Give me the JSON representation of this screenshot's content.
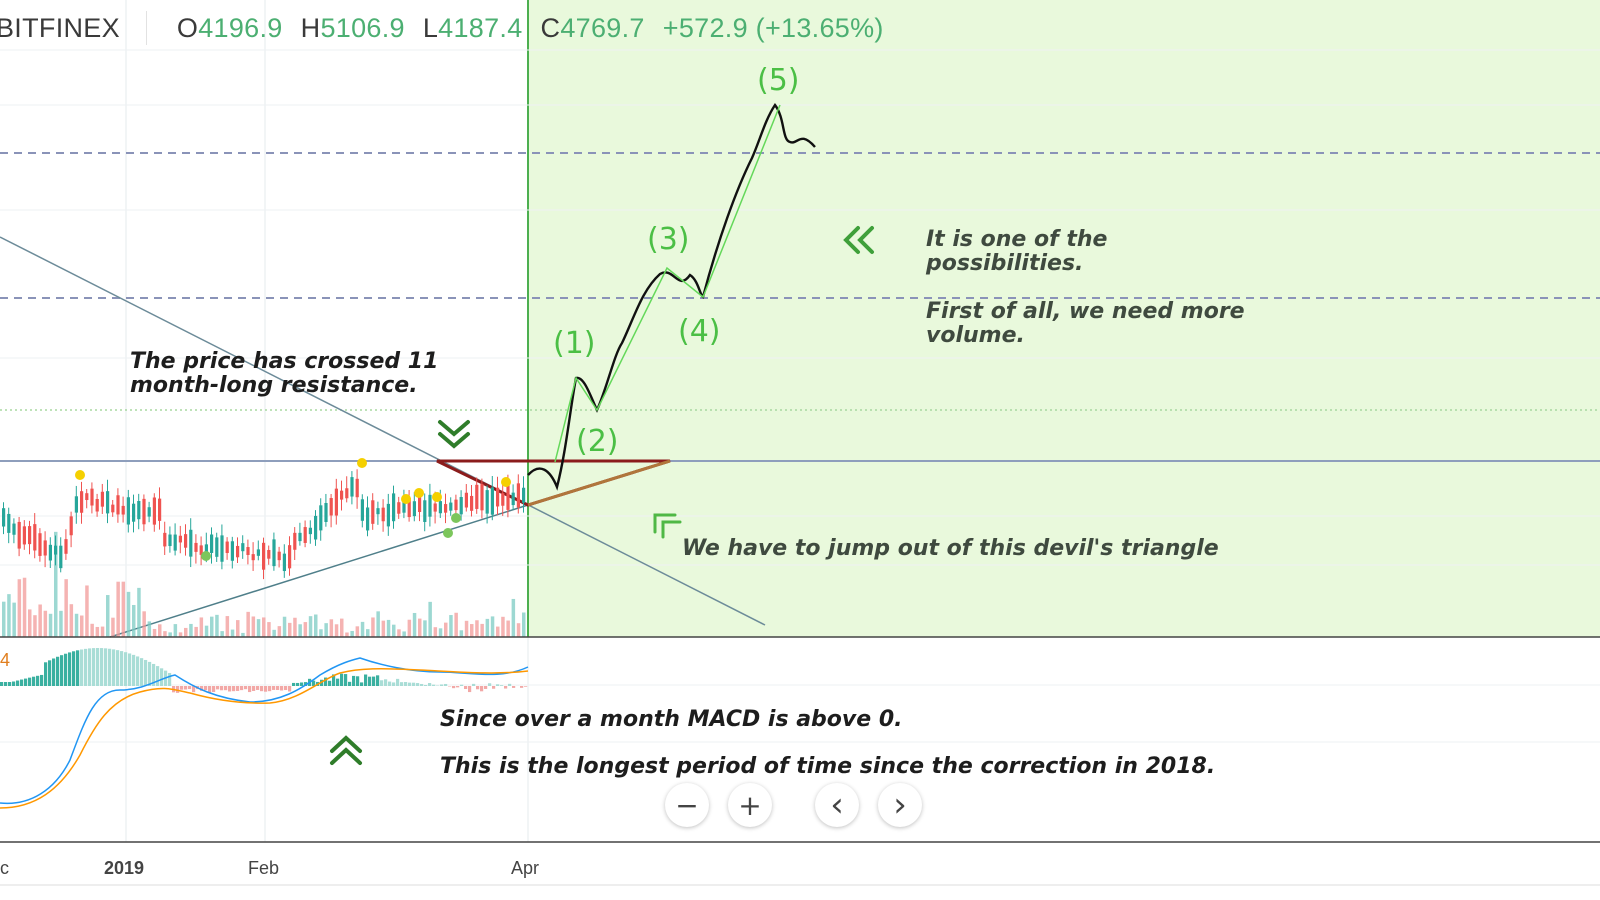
{
  "header": {
    "symbol": "BITFINEX",
    "open_label": "O",
    "open": "4196.9",
    "high_label": "H",
    "high": "5106.9",
    "low_label": "L",
    "low": "4187.4",
    "close_label": "C",
    "close": "4769.7",
    "change": "+572.9 (+13.65%)"
  },
  "annotations": {
    "resistance": "The price has crossed 11\nmonth-long resistance.",
    "possibilities": "It is one of the\npossibilities.\n\nFirst of all, we need more\nvolume.",
    "triangle": "We have to jump out of this devil's triangle",
    "macd_line1": "Since over a month MACD is above 0.",
    "macd_line2": "This is the longest period of time since the correction in 2018."
  },
  "waves": [
    "(1)",
    "(2)",
    "(3)",
    "(4)",
    "(5)"
  ],
  "macd_value": "4",
  "x_axis": {
    "labels": [
      "c",
      "2019",
      "Feb",
      "Apr"
    ]
  },
  "controls": {
    "zoom_out": "−",
    "zoom_in": "+",
    "scroll_left": "‹",
    "scroll_right": "›"
  },
  "colors": {
    "projection_bg": "#e9f9dc",
    "up": "#26a69a",
    "down": "#ef5350",
    "wave_label": "#4bbf45",
    "trend_line": "#6c8b99",
    "macd_line": "#2196f3",
    "signal_line": "#ff9800"
  },
  "icons": {
    "down_chevron": "double-chevron-down-icon",
    "left_chevron": "double-chevron-left-icon",
    "up_chevron": "double-chevron-up-icon",
    "upleft_chevron": "double-chevron-upleft-icon"
  }
}
